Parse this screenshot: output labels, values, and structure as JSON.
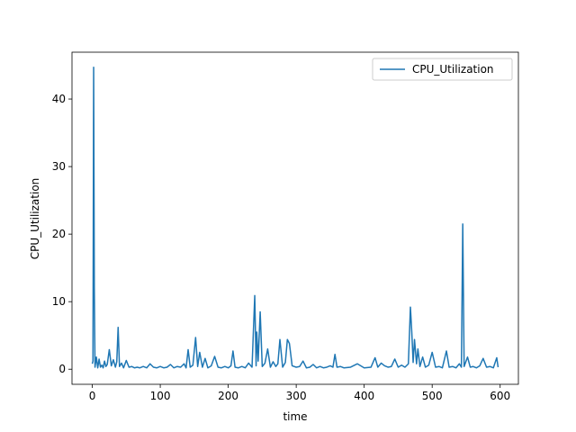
{
  "chart_data": {
    "type": "line",
    "xlabel": "time",
    "ylabel": "CPU_Utilization",
    "x": [
      0,
      1,
      2,
      3,
      4,
      6,
      8,
      10,
      12,
      14,
      16,
      18,
      20,
      22,
      25,
      28,
      31,
      34,
      36,
      38,
      40,
      43,
      46,
      50,
      54,
      58,
      62,
      66,
      70,
      75,
      80,
      85,
      90,
      95,
      100,
      105,
      110,
      115,
      120,
      125,
      130,
      135,
      138,
      141,
      144,
      148,
      152,
      155,
      158,
      162,
      166,
      170,
      175,
      180,
      185,
      190,
      195,
      200,
      204,
      207,
      210,
      215,
      220,
      225,
      230,
      235,
      239,
      241,
      242,
      244,
      247,
      250,
      254,
      258,
      262,
      266,
      270,
      273,
      276,
      280,
      284,
      287,
      290,
      294,
      300,
      305,
      310,
      315,
      320,
      325,
      330,
      335,
      340,
      345,
      350,
      354,
      357,
      360,
      365,
      370,
      380,
      390,
      400,
      410,
      416,
      420,
      425,
      430,
      435,
      440,
      445,
      450,
      455,
      460,
      465,
      468,
      470,
      472,
      474,
      477,
      479,
      482,
      486,
      490,
      495,
      500,
      505,
      510,
      515,
      521,
      525,
      530,
      535,
      540,
      543,
      545,
      547,
      552,
      556,
      560,
      565,
      570,
      575,
      580,
      585,
      590,
      595,
      597
    ],
    "series": [
      {
        "name": "CPU_Utilization",
        "color": "#1f77b4",
        "values": [
          0.8,
          1.2,
          44.7,
          12.0,
          0.3,
          1.8,
          0.2,
          1.5,
          0.3,
          0.6,
          0.2,
          1.2,
          0.4,
          0.7,
          2.9,
          0.5,
          1.4,
          0.3,
          1.1,
          6.2,
          0.4,
          0.9,
          0.2,
          1.3,
          0.3,
          0.4,
          0.2,
          0.3,
          0.2,
          0.4,
          0.2,
          0.8,
          0.3,
          0.2,
          0.4,
          0.2,
          0.3,
          0.7,
          0.2,
          0.4,
          0.3,
          0.8,
          0.2,
          2.9,
          0.3,
          0.6,
          4.7,
          0.4,
          2.5,
          0.3,
          1.6,
          0.2,
          0.5,
          1.9,
          0.3,
          0.2,
          0.4,
          0.2,
          0.5,
          2.7,
          0.3,
          0.2,
          0.4,
          0.2,
          0.9,
          0.3,
          10.9,
          0.5,
          5.5,
          1.2,
          8.5,
          0.4,
          0.9,
          3.0,
          0.3,
          1.1,
          0.4,
          0.8,
          4.4,
          0.3,
          1.0,
          4.4,
          3.8,
          0.5,
          0.3,
          0.4,
          1.2,
          0.2,
          0.3,
          0.7,
          0.2,
          0.4,
          0.2,
          0.3,
          0.5,
          0.3,
          2.2,
          0.3,
          0.4,
          0.2,
          0.3,
          0.8,
          0.2,
          0.3,
          1.7,
          0.3,
          0.9,
          0.5,
          0.3,
          0.4,
          1.5,
          0.3,
          0.6,
          0.3,
          0.8,
          9.2,
          5.5,
          1.0,
          4.4,
          0.8,
          3.0,
          0.4,
          1.8,
          0.3,
          0.6,
          2.5,
          0.3,
          0.4,
          0.2,
          2.7,
          0.3,
          0.4,
          0.2,
          0.8,
          0.3,
          21.5,
          0.4,
          1.8,
          0.3,
          0.4,
          0.2,
          0.5,
          1.6,
          0.3,
          0.4,
          0.2,
          1.7,
          0.3
        ]
      }
    ],
    "xlim": [
      -29.85,
      626.85
    ],
    "xticks": [
      0,
      100,
      200,
      300,
      400,
      500,
      600
    ],
    "ylim": [
      -2.235,
      46.935
    ],
    "yticks": [
      0,
      10,
      20,
      30,
      40
    ],
    "legend": "upper right"
  }
}
